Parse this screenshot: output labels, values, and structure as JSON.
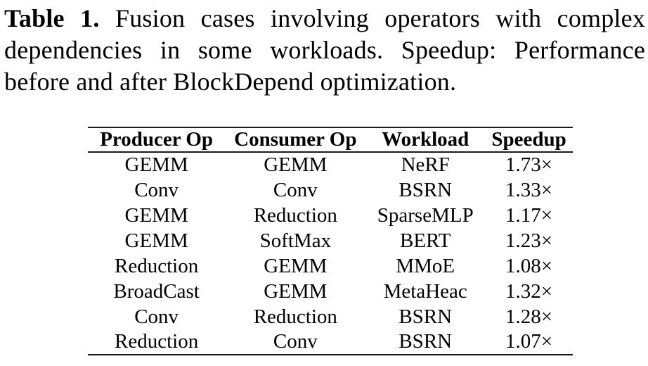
{
  "caption": {
    "label": "Table 1.",
    "line1_rest": "Fusion cases involving operators with complex",
    "line2": "dependencies in some workloads. Speedup: Performance",
    "line3": "before and after BlockDepend optimization."
  },
  "table": {
    "headers": [
      "Producer Op",
      "Consumer Op",
      "Workload",
      "Speedup"
    ],
    "rows": [
      [
        "GEMM",
        "GEMM",
        "NeRF",
        "1.73×"
      ],
      [
        "Conv",
        "Conv",
        "BSRN",
        "1.33×"
      ],
      [
        "GEMM",
        "Reduction",
        "SparseMLP",
        "1.17×"
      ],
      [
        "GEMM",
        "SoftMax",
        "BERT",
        "1.23×"
      ],
      [
        "Reduction",
        "GEMM",
        "MMoE",
        "1.08×"
      ],
      [
        "BroadCast",
        "GEMM",
        "MetaHeac",
        "1.32×"
      ],
      [
        "Conv",
        "Reduction",
        "BSRN",
        "1.28×"
      ],
      [
        "Reduction",
        "Conv",
        "BSRN",
        "1.07×"
      ]
    ]
  },
  "colors": {
    "text": "#000000",
    "background": "#ffffff",
    "rule": "#1a1a1a"
  }
}
